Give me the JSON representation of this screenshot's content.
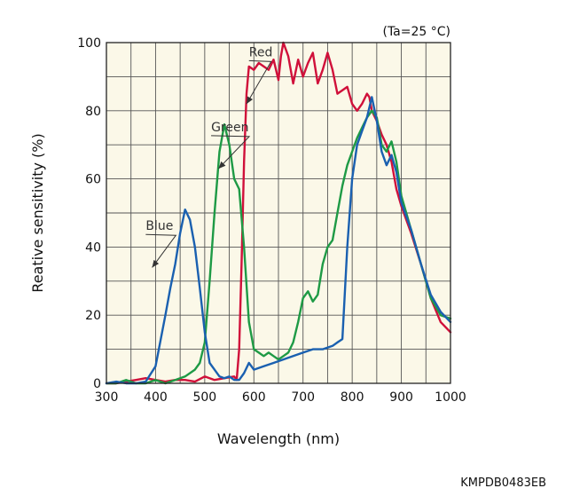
{
  "chart_data": {
    "type": "line",
    "condition": "(Ta=25 °C)",
    "xlabel": "Wavelength (nm)",
    "ylabel": "Reative sensitivity (%)",
    "xlim": [
      300,
      1000
    ],
    "ylim": [
      0,
      100
    ],
    "xticks": [
      300,
      400,
      500,
      600,
      700,
      800,
      900,
      1000
    ],
    "yticks": [
      0,
      20,
      40,
      60,
      80,
      100
    ],
    "grid": true,
    "code": "KMPDB0483EB",
    "colors": {
      "Red": "#d0103a",
      "Green": "#1e9a45",
      "Blue": "#1a60b0",
      "plot_bg": "#fbf8e8",
      "grid": "#555555"
    },
    "series": [
      {
        "name": "Red",
        "label_at": [
          590,
          96
        ],
        "arrow_to": [
          585,
          82
        ],
        "x": [
          300,
          320,
          340,
          360,
          380,
          400,
          420,
          440,
          460,
          480,
          500,
          520,
          540,
          560,
          565,
          570,
          575,
          580,
          585,
          590,
          600,
          610,
          620,
          630,
          640,
          650,
          655,
          660,
          665,
          670,
          680,
          690,
          700,
          710,
          720,
          730,
          740,
          750,
          760,
          770,
          780,
          790,
          800,
          810,
          820,
          830,
          835,
          840,
          850,
          860,
          870,
          880,
          890,
          900,
          920,
          940,
          960,
          980,
          1000
        ],
        "values": [
          0,
          0,
          0.5,
          1,
          1.5,
          1,
          0.5,
          1,
          1,
          0.5,
          2,
          1,
          1.5,
          2,
          1,
          10,
          35,
          65,
          85,
          93,
          92,
          94,
          93,
          92,
          95,
          89,
          96,
          100,
          98,
          96,
          88,
          95,
          90,
          94,
          97,
          88,
          92,
          97,
          92,
          85,
          86,
          87,
          82,
          80,
          82,
          85,
          84,
          80,
          77,
          73,
          70,
          65,
          57,
          52,
          44,
          35,
          25,
          18,
          15
        ]
      },
      {
        "name": "Green",
        "label_at": [
          513,
          74
        ],
        "arrow_to": [
          528,
          63
        ],
        "x": [
          300,
          320,
          340,
          360,
          380,
          400,
          420,
          440,
          460,
          480,
          490,
          500,
          510,
          520,
          530,
          540,
          550,
          560,
          570,
          580,
          590,
          600,
          610,
          620,
          630,
          640,
          650,
          660,
          670,
          680,
          690,
          700,
          710,
          720,
          730,
          740,
          750,
          760,
          770,
          780,
          790,
          800,
          810,
          820,
          830,
          840,
          850,
          860,
          870,
          880,
          890,
          900,
          920,
          940,
          960,
          980,
          1000
        ],
        "values": [
          0,
          0,
          1,
          0,
          0,
          1,
          0,
          1,
          2,
          4,
          6,
          12,
          30,
          50,
          68,
          76,
          70,
          60,
          57,
          40,
          18,
          10,
          9,
          8,
          9,
          8,
          7,
          8,
          9,
          12,
          18,
          25,
          27,
          24,
          26,
          35,
          40,
          42,
          50,
          58,
          64,
          68,
          72,
          75,
          78,
          80,
          78,
          70,
          68,
          71,
          65,
          55,
          45,
          35,
          25,
          20,
          19
        ]
      },
      {
        "name": "Blue",
        "label_at": [
          380,
          45
        ],
        "arrow_to": [
          393,
          34
        ],
        "x": [
          300,
          320,
          340,
          360,
          380,
          400,
          420,
          430,
          440,
          450,
          460,
          470,
          480,
          490,
          500,
          510,
          520,
          530,
          540,
          550,
          560,
          570,
          580,
          590,
          600,
          620,
          640,
          660,
          680,
          700,
          720,
          740,
          760,
          770,
          780,
          790,
          800,
          810,
          820,
          830,
          840,
          850,
          860,
          870,
          880,
          890,
          900,
          920,
          940,
          960,
          980,
          1000
        ],
        "values": [
          0,
          0.5,
          0,
          0,
          0.5,
          5,
          20,
          28,
          35,
          44,
          51,
          48,
          40,
          28,
          15,
          6,
          4,
          2,
          1.5,
          2,
          1,
          1,
          3,
          6,
          4,
          5,
          6,
          7,
          8,
          9,
          10,
          10,
          11,
          12,
          13,
          40,
          60,
          70,
          74,
          78,
          84,
          77,
          68,
          64,
          67,
          62,
          53,
          45,
          35,
          26,
          21,
          18
        ]
      }
    ]
  }
}
